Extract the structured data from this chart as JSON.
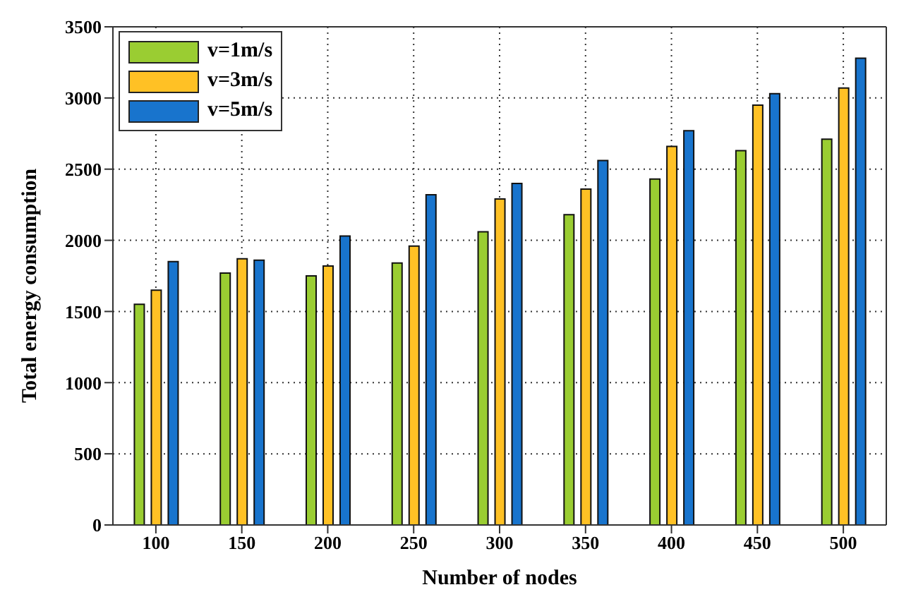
{
  "chart_data": {
    "type": "bar",
    "xlabel": "Number of nodes",
    "ylabel": "Total energy consumption",
    "categories": [
      "100",
      "150",
      "200",
      "250",
      "300",
      "350",
      "400",
      "450",
      "500"
    ],
    "series": [
      {
        "name": "v=1m/s",
        "color": "#9acd32",
        "values": [
          1550,
          1770,
          1750,
          1840,
          2060,
          2180,
          2430,
          2630,
          2710
        ]
      },
      {
        "name": "v=3m/s",
        "color": "#ffc125",
        "values": [
          1650,
          1870,
          1820,
          1960,
          2290,
          2360,
          2660,
          2950,
          3070
        ]
      },
      {
        "name": "v=5m/s",
        "color": "#1874cd",
        "values": [
          1850,
          1860,
          2030,
          2320,
          2400,
          2560,
          2770,
          3030,
          3280
        ]
      }
    ],
    "ylim": [
      0,
      3500
    ],
    "yticks": [
      0,
      500,
      1000,
      1500,
      2000,
      2500,
      3000,
      3500
    ],
    "grid": true,
    "legend": "top left"
  }
}
